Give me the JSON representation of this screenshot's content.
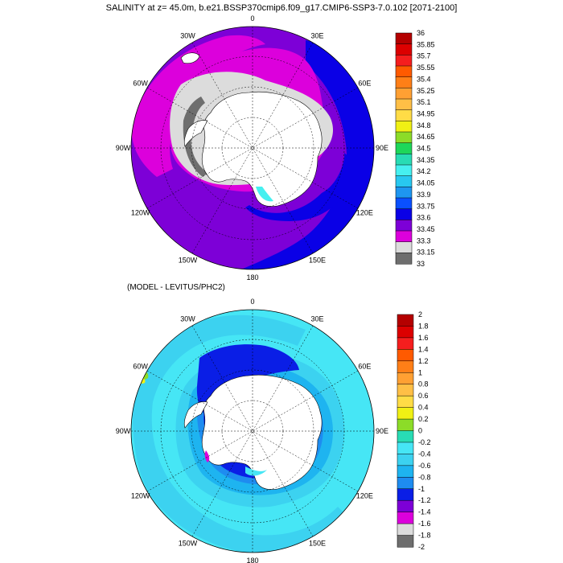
{
  "chart_data": [
    {
      "type": "heatmap",
      "projection": "south-polar-stereographic",
      "title": "SALINITY at z=  45.0m, b.e21.BSSP370cmip6.f09_g17.CMIP6-SSP3-7.0.102 [2071-2100]",
      "lon_labels": [
        "0",
        "30E",
        "60E",
        "90E",
        "120E",
        "150E",
        "180",
        "150W",
        "120W",
        "90W",
        "60W",
        "30W"
      ],
      "legend_placement": "right",
      "colorbar": {
        "labels": [
          "36",
          "35.85",
          "35.7",
          "35.55",
          "35.4",
          "35.25",
          "35.1",
          "34.95",
          "34.8",
          "34.65",
          "34.5",
          "34.35",
          "34.2",
          "34.05",
          "33.9",
          "33.75",
          "33.6",
          "33.45",
          "33.3",
          "33.15",
          "33"
        ],
        "colors": [
          "#b40000",
          "#dc0000",
          "#f51e1e",
          "#ff5a00",
          "#ff7f17",
          "#ffa033",
          "#ffbf46",
          "#ffdc46",
          "#f0f014",
          "#8cdc28",
          "#1ed75a",
          "#28dcb4",
          "#46f0f0",
          "#28c8f0",
          "#1e96f0",
          "#0a50ff",
          "#0a00e6",
          "#7d00d7",
          "#dc00dc",
          "#dcdcdc",
          "#6e6e6e"
        ]
      },
      "dominant_field": "33.45–33.6 ring around the continent, 33.6–33.75 in the outer ocean, below 33.3 near the coast"
    },
    {
      "type": "heatmap",
      "projection": "south-polar-stereographic",
      "title": "(MODEL - LEVITUS/PHC2)",
      "lon_labels": [
        "0",
        "30E",
        "60E",
        "90E",
        "120E",
        "150E",
        "180",
        "150W",
        "120W",
        "90W",
        "60W",
        "30W"
      ],
      "legend_placement": "right",
      "colorbar": {
        "labels": [
          "2",
          "1.8",
          "1.6",
          "1.4",
          "1.2",
          "1",
          "0.8",
          "0.6",
          "0.4",
          "0.2",
          "0",
          "-0.2",
          "-0.4",
          "-0.6",
          "-0.8",
          "-1",
          "-1.2",
          "-1.4",
          "-1.6",
          "-1.8",
          "-2"
        ],
        "colors": [
          "#b40000",
          "#dc0000",
          "#f51e1e",
          "#ff5a00",
          "#ff7f17",
          "#ffa033",
          "#ffbf46",
          "#ffdc46",
          "#f0f014",
          "#8cdc28",
          "#28dcb4",
          "#46e6f5",
          "#3cd2f0",
          "#1eb4f0",
          "#1e8cf0",
          "#0a1ee6",
          "#7d00d7",
          "#dc00dc",
          "#dcdcdc",
          "#6e6e6e"
        ]
      },
      "dominant_field": "-0.2 to -0.6 over most of the Southern Ocean, -0.8 to -1.2 close to the coast"
    }
  ]
}
